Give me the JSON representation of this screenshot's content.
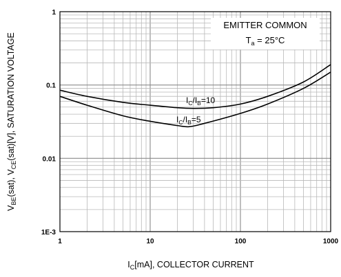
{
  "chart_data": {
    "type": "line",
    "title": "",
    "xscale": "log",
    "yscale": "log",
    "xlim": [
      1,
      1000
    ],
    "ylim": [
      0.001,
      1
    ],
    "grid": true,
    "xticks": [
      {
        "value": 1,
        "label": "1"
      },
      {
        "value": 10,
        "label": "10"
      },
      {
        "value": 100,
        "label": "100"
      },
      {
        "value": 1000,
        "label": "1000"
      }
    ],
    "yticks": [
      {
        "value": 1,
        "label": "1"
      },
      {
        "value": 0.1,
        "label": "0.1"
      },
      {
        "value": 0.01,
        "label": "0.01"
      },
      {
        "value": 0.001,
        "label": "1E-3"
      }
    ],
    "xlabel": {
      "pre": "I",
      "sub": "C",
      "post": "[mA], COLLECTOR CURRENT"
    },
    "ylabel": {
      "p1": "V",
      "s1": "BE",
      "p2": "(sat), V",
      "s2": "CE",
      "p3": "(sat)[V], SATURATION VOLTAGE"
    },
    "annotation_box": {
      "line1": "EMITTER COMMON",
      "line2": {
        "pre": "T",
        "sub": "a",
        "post": " = 25°C"
      }
    },
    "series": [
      {
        "label": {
          "a": "I",
          "sa": "C",
          "b": "/I",
          "sb": "B",
          "c": "=10"
        },
        "x": [
          1,
          2,
          5,
          10,
          20,
          30,
          50,
          100,
          200,
          500,
          1000
        ],
        "y": [
          0.085,
          0.07,
          0.058,
          0.053,
          0.049,
          0.048,
          0.049,
          0.055,
          0.07,
          0.11,
          0.19
        ]
      },
      {
        "label": {
          "a": "I",
          "sa": "C",
          "b": "/I",
          "sb": "B",
          "c": "=5"
        },
        "x": [
          1,
          2,
          5,
          10,
          20,
          27,
          40,
          100,
          200,
          500,
          1000
        ],
        "y": [
          0.07,
          0.053,
          0.038,
          0.032,
          0.028,
          0.027,
          0.03,
          0.041,
          0.055,
          0.09,
          0.15
        ]
      }
    ]
  }
}
